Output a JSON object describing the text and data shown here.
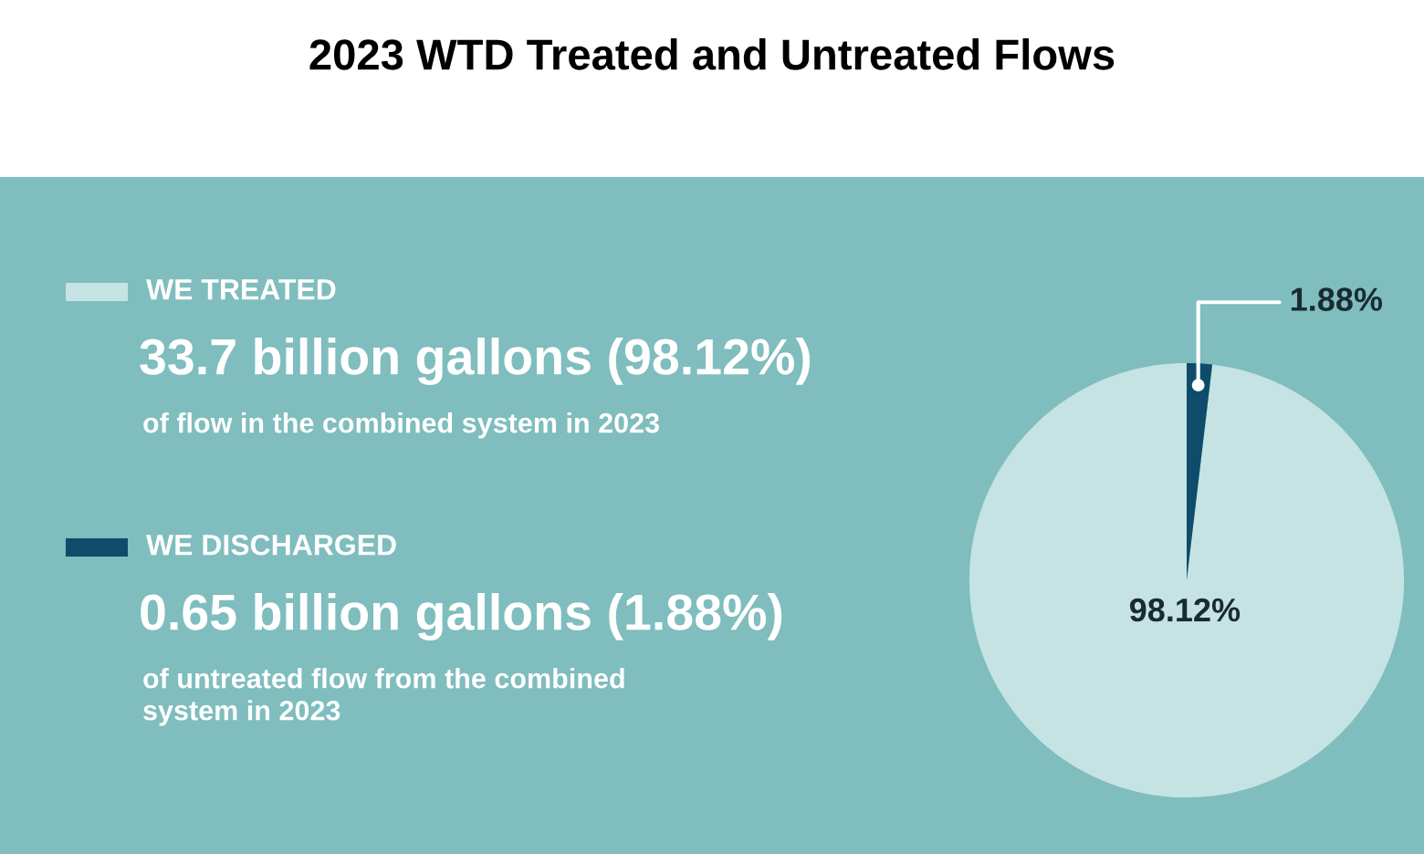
{
  "chart_data": {
    "type": "pie",
    "title": "2023 WTD Treated and Untreated Flows",
    "categories": [
      "WE TREATED",
      "WE DISCHARGED"
    ],
    "values": [
      98.12,
      1.88
    ],
    "colors": [
      "#c4e3e2",
      "#0f4c6c"
    ],
    "value_labels": [
      "98.12%",
      "1.88%"
    ],
    "annotations": [
      "33.7 billion gallons (98.12%)",
      "of flow in the combined system in 2023",
      "0.65 billion gallons (1.88%)",
      "of untreated flow from the combined\nsystem in 2023"
    ],
    "legend": "left"
  }
}
